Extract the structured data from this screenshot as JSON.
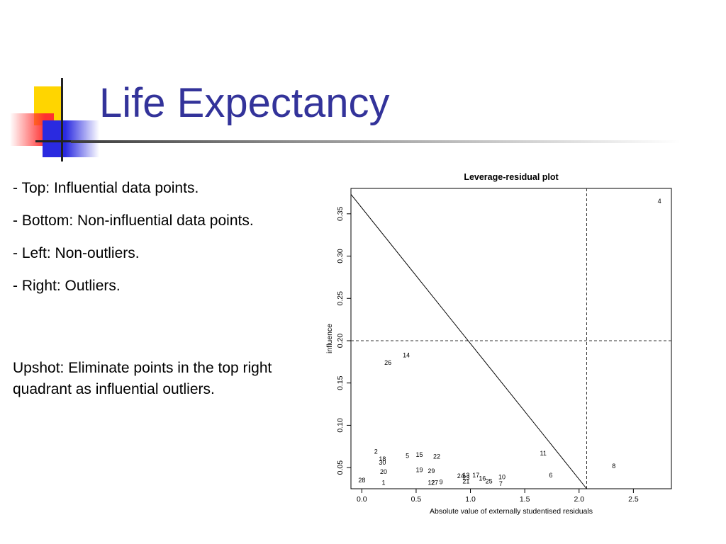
{
  "slide": {
    "title": "Life Expectancy",
    "bullets": [
      "- Top: Influential data points.",
      "- Bottom: Non-influential data points.",
      "- Left: Non-outliers.",
      "- Right: Outliers."
    ],
    "upshot": "Upshot: Eliminate points in the top right quadrant as influential outliers."
  },
  "colors": {
    "title": "#33339a",
    "text": "#000000",
    "logo_yellow": "#ffd500",
    "logo_red": "#ff3030",
    "logo_blue": "#2a2ae0"
  },
  "chart_data": {
    "type": "scatter",
    "title": "Leverage-residual plot",
    "xlabel": "Absolute value of externally studentised residuals",
    "ylabel": "influence",
    "xlim": [
      -0.1,
      2.85
    ],
    "ylim": [
      0.025,
      0.38
    ],
    "xticks": [
      "0.0",
      "0.5",
      "1.0",
      "1.5",
      "2.0",
      "2.5"
    ],
    "yticks": [
      "0.05",
      "0.10",
      "0.15",
      "0.20",
      "0.25",
      "0.30",
      "0.35"
    ],
    "grid": false,
    "points": [
      {
        "label": "1",
        "x": 0.2,
        "y": 0.032
      },
      {
        "label": "2",
        "x": 0.13,
        "y": 0.069
      },
      {
        "label": "4",
        "x": 2.74,
        "y": 0.365
      },
      {
        "label": "5",
        "x": 0.42,
        "y": 0.064
      },
      {
        "label": "6",
        "x": 1.74,
        "y": 0.041
      },
      {
        "label": "7",
        "x": 1.28,
        "y": 0.031
      },
      {
        "label": "8",
        "x": 2.32,
        "y": 0.052
      },
      {
        "label": "9",
        "x": 0.73,
        "y": 0.033
      },
      {
        "label": "10",
        "x": 1.29,
        "y": 0.039
      },
      {
        "label": "11",
        "x": 1.67,
        "y": 0.067
      },
      {
        "label": "12",
        "x": 0.64,
        "y": 0.032
      },
      {
        "label": "13",
        "x": 0.96,
        "y": 0.041
      },
      {
        "label": "14",
        "x": 0.41,
        "y": 0.183
      },
      {
        "label": "15",
        "x": 0.53,
        "y": 0.065
      },
      {
        "label": "16",
        "x": 1.11,
        "y": 0.037
      },
      {
        "label": "17",
        "x": 1.05,
        "y": 0.041
      },
      {
        "label": "18",
        "x": 0.19,
        "y": 0.06
      },
      {
        "label": "19",
        "x": 0.53,
        "y": 0.047
      },
      {
        "label": "20",
        "x": 0.2,
        "y": 0.045
      },
      {
        "label": "21",
        "x": 0.96,
        "y": 0.034
      },
      {
        "label": "22",
        "x": 0.69,
        "y": 0.063
      },
      {
        "label": "23",
        "x": 0.96,
        "y": 0.038
      },
      {
        "label": "24",
        "x": 0.91,
        "y": 0.04
      },
      {
        "label": "25",
        "x": 1.17,
        "y": 0.034
      },
      {
        "label": "26",
        "x": 0.24,
        "y": 0.174
      },
      {
        "label": "27",
        "x": 0.67,
        "y": 0.032
      },
      {
        "label": "28",
        "x": 0.0,
        "y": 0.035
      },
      {
        "label": "29",
        "x": 0.64,
        "y": 0.046
      },
      {
        "label": "30",
        "x": 0.19,
        "y": 0.056
      }
    ],
    "reference_lines": [
      {
        "kind": "horizontal",
        "y": 0.2,
        "style": "dashed"
      },
      {
        "kind": "vertical",
        "x": 2.07,
        "style": "dashed"
      },
      {
        "kind": "segment",
        "x1": -0.1,
        "y1": 0.373,
        "x2": 2.07,
        "y2": 0.025,
        "style": "solid"
      }
    ]
  }
}
